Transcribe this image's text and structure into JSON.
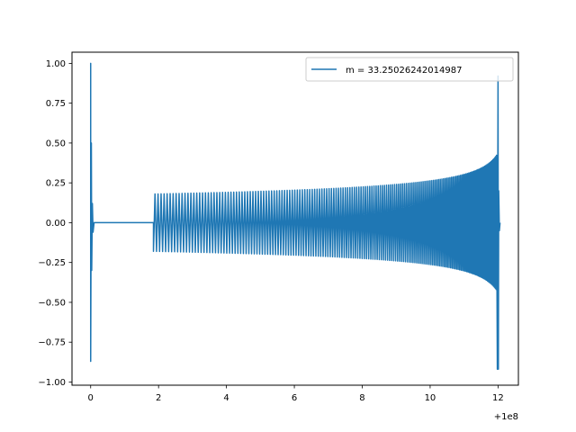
{
  "chart_data": {
    "type": "line",
    "title": "",
    "xlabel": "",
    "ylabel": "",
    "x_offset_label": "+1e8",
    "xlim": [
      -0.55,
      12.6
    ],
    "ylim": [
      -1.02,
      1.07
    ],
    "xticks": [
      0,
      2,
      4,
      6,
      8,
      10,
      12
    ],
    "xtick_labels": [
      "0",
      "2",
      "4",
      "6",
      "8",
      "10",
      "12"
    ],
    "yticks": [
      -1.0,
      -0.75,
      -0.5,
      -0.25,
      0.0,
      0.25,
      0.5,
      0.75,
      1.0
    ],
    "ytick_labels": [
      "−1.00",
      "−0.75",
      "−0.50",
      "−0.25",
      "0.00",
      "0.25",
      "0.50",
      "0.75",
      "1.00"
    ],
    "grid": false,
    "legend": "top-right",
    "colors": {
      "series": "#1f77b4",
      "axes": "#000000"
    },
    "series": [
      {
        "name": "m = 33.25026242014987",
        "description_points": {
          "spike_x": 0.0,
          "spike_max": 1.0,
          "spike_min": -0.87,
          "flat_start": 0.1,
          "flat_end": 1.85,
          "oscillation_start": 1.85,
          "oscillation_start_amplitude": 0.18,
          "amplitude_at_8": 0.23,
          "amplitude_at_10": 0.3,
          "amplitude_at_11": 0.38,
          "oscillation_end": 12.0,
          "end_max": 0.92,
          "end_min": -0.92
        }
      }
    ]
  }
}
